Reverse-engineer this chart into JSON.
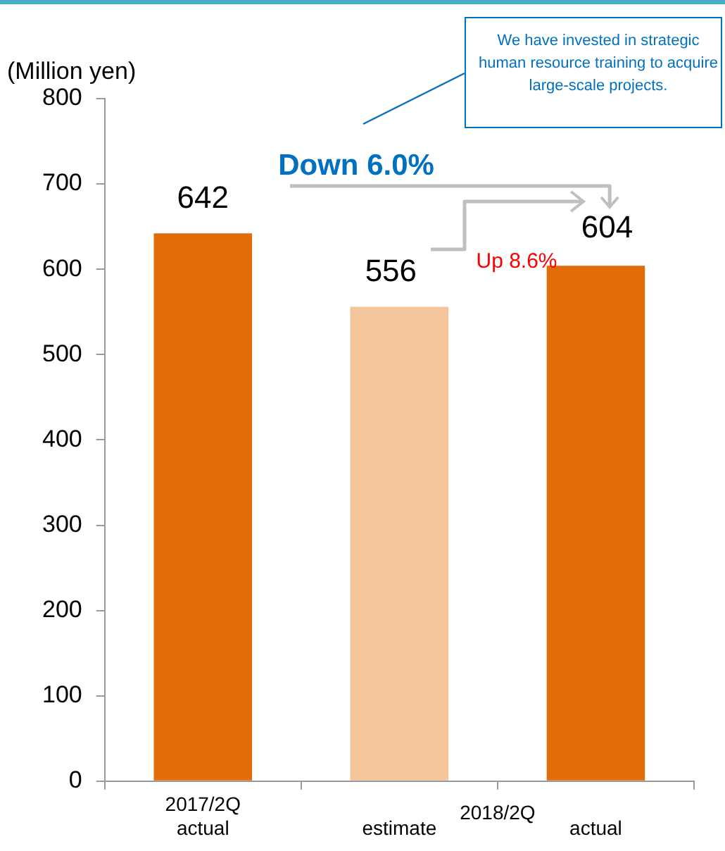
{
  "chart_data": {
    "type": "bar",
    "ylabel": "(Million yen)",
    "categories": [
      "2017/2Q\nactual",
      "estimate",
      "actual"
    ],
    "values": [
      642,
      556,
      604
    ],
    "colors": [
      "#e36c0a",
      "#f4c59a",
      "#e36c0a"
    ],
    "ylim": [
      0,
      800
    ],
    "yticks": [
      0,
      100,
      200,
      300,
      400,
      500,
      600,
      700,
      800
    ],
    "data_labels": true,
    "annotations": [
      "2018/2Q",
      "Down 6.0%",
      "Up 8.6%",
      "We have invested in strategic human resource training to acquire large-scale projects."
    ]
  }
}
